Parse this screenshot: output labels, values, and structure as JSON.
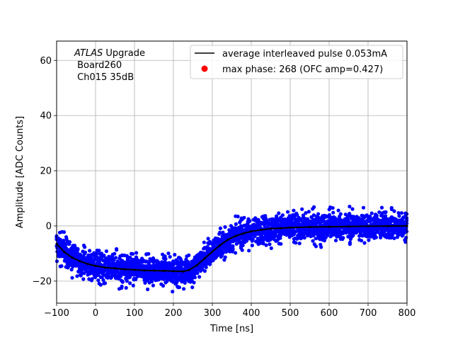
{
  "chart_data": {
    "type": "scatter",
    "xlabel": "Time [ns]",
    "ylabel": "Amplitude [ADC Counts]",
    "xlim": [
      -100,
      800
    ],
    "ylim": [
      -28,
      67
    ],
    "xticks": [
      -100,
      0,
      100,
      200,
      300,
      400,
      500,
      600,
      700,
      800
    ],
    "yticks": [
      -20,
      0,
      20,
      40,
      60
    ],
    "grid": true,
    "annotation": {
      "line1_italic": "ATLAS",
      "line1_rest": " Upgrade",
      "line2": " Board260",
      "line3": " Ch015 35dB"
    },
    "legend": {
      "placement": "top-right",
      "entries": [
        {
          "label": "average interleaved pulse 0.053mA",
          "marker": "line",
          "color": "#000000"
        },
        {
          "label": "max phase: 268 (OFC amp=0.427)",
          "marker": "dot",
          "color": "#ff0000"
        }
      ]
    },
    "series": [
      {
        "name": "samples",
        "color": "#0000ff",
        "band_note": "dense scatter around the average pulse, spread about ±6 ADC counts",
        "spread": 5.5
      },
      {
        "name": "average interleaved pulse 0.053mA",
        "color": "#000000",
        "x": [
          -100,
          -80,
          -60,
          -40,
          -20,
          0,
          25,
          50,
          75,
          100,
          125,
          150,
          175,
          200,
          225,
          240,
          260,
          280,
          300,
          320,
          340,
          360,
          380,
          400,
          425,
          450,
          475,
          500,
          550,
          600,
          650,
          700,
          750,
          800
        ],
        "y": [
          -6.5,
          -9.5,
          -11.5,
          -12.8,
          -13.8,
          -14.5,
          -15.1,
          -15.4,
          -15.7,
          -15.9,
          -16.1,
          -16.2,
          -16.3,
          -16.4,
          -16.5,
          -16.0,
          -14.3,
          -11.8,
          -9.3,
          -7.0,
          -5.0,
          -3.6,
          -2.7,
          -2.0,
          -1.4,
          -1.0,
          -0.8,
          -0.6,
          -0.4,
          -0.3,
          -0.2,
          -0.1,
          -0.1,
          0.0
        ]
      }
    ]
  }
}
